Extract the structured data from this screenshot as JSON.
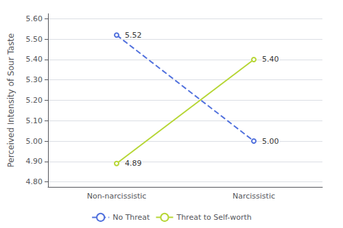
{
  "chart_data": {
    "type": "line",
    "categories": [
      "Non-narcissistic",
      "Narcissistic"
    ],
    "series": [
      {
        "name": "No Threat",
        "values": [
          5.52,
          5.0
        ],
        "value_labels": [
          "5.52",
          "5.00"
        ],
        "line_style": "dashed"
      },
      {
        "name": "Threat to Self-worth",
        "values": [
          4.89,
          5.4
        ],
        "value_labels": [
          "4.89",
          "5.40"
        ],
        "line_style": "solid"
      }
    ],
    "ylabel": "Perceived Intensity of Sour Taste",
    "ylim": [
      4.775,
      5.625
    ],
    "yticks": [
      {
        "value": 4.8,
        "label": "4.80"
      },
      {
        "value": 4.9,
        "label": "4.90"
      },
      {
        "value": 5.0,
        "label": "5.00"
      },
      {
        "value": 5.1,
        "label": "5.10"
      },
      {
        "value": 5.2,
        "label": "5.20"
      },
      {
        "value": 5.3,
        "label": "5.30"
      },
      {
        "value": 5.4,
        "label": "5.40"
      },
      {
        "value": 5.5,
        "label": "5.50"
      },
      {
        "value": 5.6,
        "label": "5.60"
      }
    ],
    "grid": true,
    "legend": "bottom",
    "data_labels": true
  }
}
